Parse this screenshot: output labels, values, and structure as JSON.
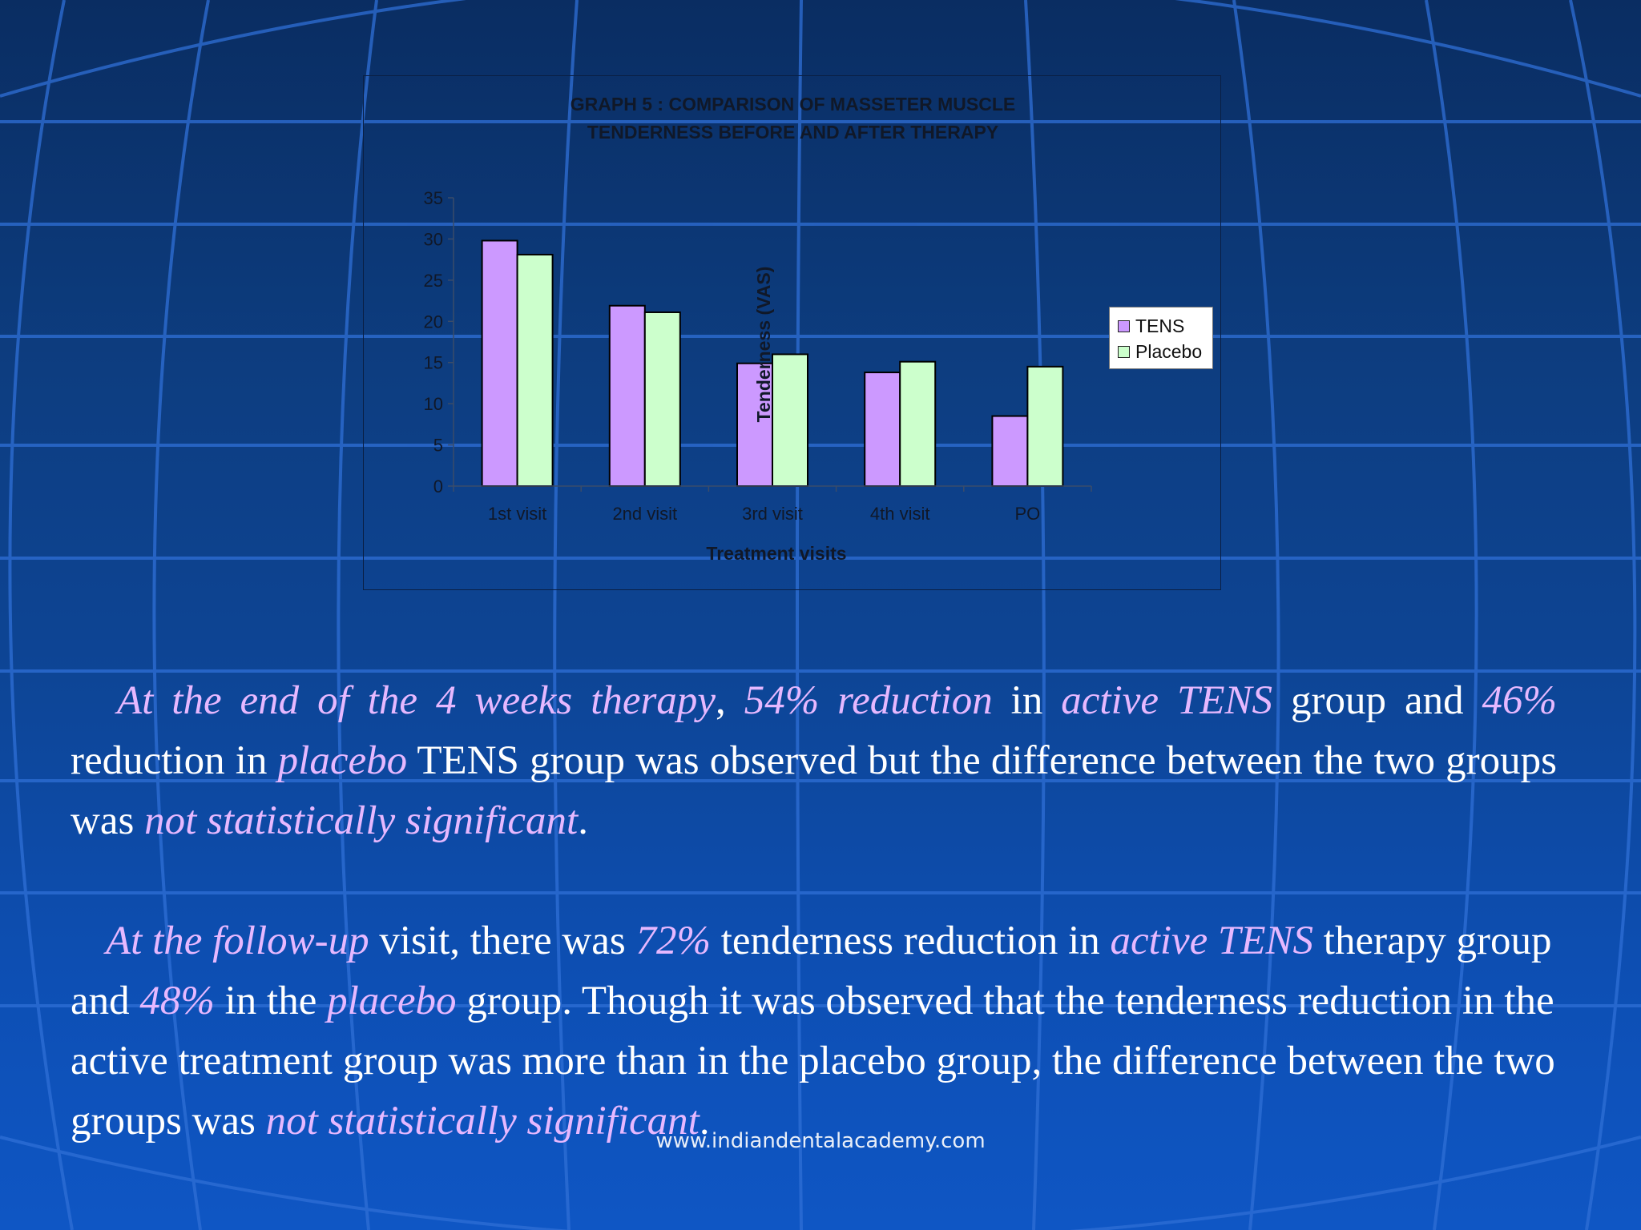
{
  "chart_data": {
    "type": "bar",
    "title_lines": [
      "GRAPH 5 : COMPARISON OF MASSETER MUSCLE",
      "TENDERNESS BEFORE AND AFTER THERAPY"
    ],
    "xlabel": "Treatment visits",
    "ylabel": "Tenderness (VAS)",
    "categories": [
      "1st visit",
      "2nd visit",
      "3rd visit",
      "4th visit",
      "PO"
    ],
    "ylim": [
      0,
      35
    ],
    "yticks": [
      0,
      5,
      10,
      15,
      20,
      25,
      30,
      35
    ],
    "grid": false,
    "legend_position": "right",
    "series": [
      {
        "name": "TENS",
        "color": "#cc99ff",
        "values": [
          29.8,
          21.9,
          14.9,
          13.8,
          8.5
        ]
      },
      {
        "name": "Placebo",
        "color": "#ccffcc",
        "values": [
          28.1,
          21.1,
          16.0,
          15.1,
          14.5
        ]
      }
    ]
  },
  "paragraphs": [
    [
      {
        "t": "At the end of the 4 weeks therapy",
        "em": true
      },
      {
        "t": ", ",
        "em": false
      },
      {
        "t": "54% reduction",
        "em": true
      },
      {
        "t": " in ",
        "em": false
      },
      {
        "t": "active TENS",
        "em": true
      },
      {
        "t": " group and ",
        "em": false
      },
      {
        "t": "46%",
        "em": true
      },
      {
        "t": " reduction in ",
        "em": false
      },
      {
        "t": "placebo",
        "em": true
      },
      {
        "t": " TENS group was observed but the difference between the two groups was ",
        "em": false
      },
      {
        "t": "not statistically significant",
        "em": true
      },
      {
        "t": ".",
        "em": false
      }
    ],
    [
      {
        "t": "At the follow-up",
        "em": true
      },
      {
        "t": " visit, there was ",
        "em": false
      },
      {
        "t": "72%",
        "em": true
      },
      {
        "t": " tenderness reduction in ",
        "em": false
      },
      {
        "t": "active TENS",
        "em": true
      },
      {
        "t": " therapy group and ",
        "em": false
      },
      {
        "t": "48%",
        "em": true
      },
      {
        "t": " in the ",
        "em": false
      },
      {
        "t": "placebo",
        "em": true
      },
      {
        "t": " group. Though it was observed that the tenderness reduction in the active treatment group was more than in the placebo group, the difference between the two groups was ",
        "em": false
      },
      {
        "t": "not statistically significant",
        "em": true
      },
      {
        "t": ".",
        "em": false
      }
    ]
  ],
  "footer": {
    "website": "www.indiandentalacademy.com"
  }
}
